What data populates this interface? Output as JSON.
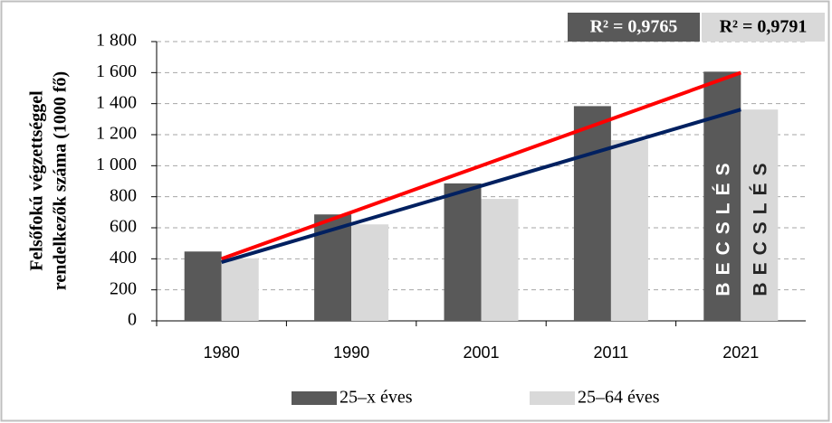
{
  "chart_data": {
    "type": "bar",
    "y_axis_label": [
      "Felsőfokú végzettséggel",
      "rendelkezők száma (1000 fő)"
    ],
    "categories": [
      "1980",
      "1990",
      "2001",
      "2011",
      "2021"
    ],
    "series": [
      {
        "name": "25–x éves",
        "color": "#595959",
        "values": [
          447,
          686,
          886,
          1384,
          1606
        ]
      },
      {
        "name": "25–64 éves",
        "color": "#d9d9d9",
        "values": [
          403,
          622,
          786,
          1165,
          1362
        ]
      }
    ],
    "trendlines": [
      {
        "color": "#ff0000",
        "values": [
          400,
          700,
          1000,
          1300,
          1600
        ],
        "r2_label": "R² = 0,9765"
      },
      {
        "color": "#002060",
        "values": [
          378,
          624,
          870,
          1116,
          1362
        ],
        "r2_label": "R² = 0,9791"
      }
    ],
    "annotations": [
      "BECSLÉS",
      "BECSLÉS"
    ],
    "ylim": [
      0,
      1800
    ],
    "yticks": [
      0,
      200,
      400,
      600,
      800,
      {
        "value": 1000,
        "label": "1 000"
      },
      {
        "value": 1200,
        "label": "1 200"
      },
      {
        "value": 1400,
        "label": "1 400"
      },
      {
        "value": 1600,
        "label": "1 600"
      },
      {
        "value": 1800,
        "label": "1 800"
      }
    ],
    "grid": true
  }
}
